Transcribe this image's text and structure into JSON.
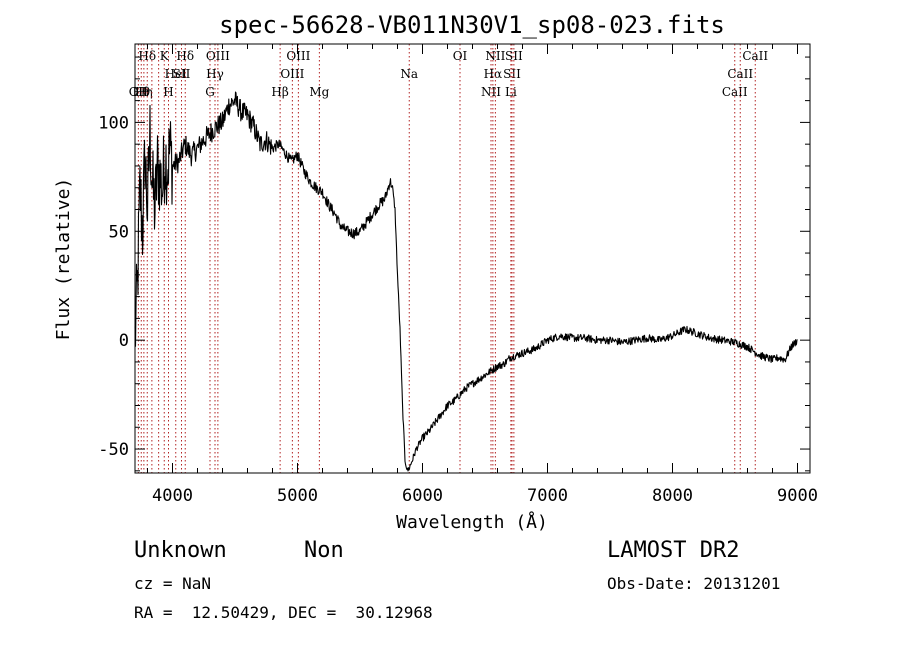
{
  "chart_data": {
    "type": "line",
    "title": "spec-56628-VB011N30V1_sp08-023.fits",
    "xlabel": "Wavelength (Å)",
    "ylabel": "Flux (relative)",
    "xlim": [
      3700,
      9100
    ],
    "ylim": [
      -61,
      136
    ],
    "xticks": [
      4000,
      5000,
      6000,
      7000,
      8000,
      9000
    ],
    "yticks": [
      -50,
      0,
      50,
      100
    ],
    "grid": false,
    "series": [
      {
        "x": [
          3700,
          3720,
          3740,
          3760,
          3780,
          3800,
          3820,
          3840,
          3860,
          3880,
          3900,
          3920,
          3940,
          3960,
          3980,
          4000,
          4050,
          4100,
          4150,
          4200,
          4250,
          4300,
          4350,
          4400,
          4450,
          4500,
          4550,
          4600,
          4650,
          4700,
          4750,
          4800,
          4850,
          4900,
          4950,
          5000,
          5050,
          5100,
          5150,
          5200,
          5250,
          5300,
          5350,
          5400,
          5450,
          5500,
          5550,
          5600,
          5650,
          5700,
          5740,
          5760,
          5780,
          5800,
          5820,
          5840,
          5860,
          5880,
          5900,
          5950,
          6000,
          6050,
          6100,
          6150,
          6200,
          6250,
          6300,
          6350,
          6400,
          6450,
          6500,
          6550,
          6600,
          6650,
          6700,
          6750,
          6800,
          6850,
          6900,
          6950,
          7000,
          7100,
          7200,
          7300,
          7400,
          7500,
          7600,
          7700,
          7800,
          7900,
          8000,
          8100,
          8200,
          8300,
          8400,
          8500,
          8550,
          8600,
          8650,
          8700,
          8750,
          8800,
          8850,
          8900,
          8950,
          9000
        ],
        "y": [
          0,
          25,
          70,
          50,
          85,
          60,
          95,
          70,
          60,
          80,
          75,
          70,
          85,
          80,
          88,
          80,
          82,
          90,
          85,
          88,
          92,
          95,
          98,
          100,
          108,
          110,
          105,
          103,
          98,
          90,
          92,
          88,
          90,
          86,
          82,
          85,
          78,
          73,
          70,
          68,
          62,
          58,
          52,
          50,
          49,
          50,
          54,
          58,
          62,
          65,
          73,
          70,
          60,
          30,
          5,
          -30,
          -55,
          -60,
          -58,
          -50,
          -45,
          -42,
          -38,
          -34,
          -30,
          -28,
          -25,
          -22,
          -20,
          -18,
          -16,
          -14,
          -12,
          -11,
          -8,
          -7,
          -6,
          -5,
          -4,
          -2,
          0,
          2,
          1,
          1,
          0,
          0,
          -1,
          0,
          1,
          0,
          2,
          5,
          3,
          1,
          0,
          -1,
          -2,
          -3,
          -5,
          -7,
          -8,
          -9,
          -8,
          -9,
          -3,
          0
        ]
      }
    ],
    "lines": [
      {
        "w": 3727,
        "label": "OII",
        "row": 3
      },
      {
        "w": 3750,
        "label": "Hθ",
        "row": 3
      },
      {
        "w": 3771,
        "label": "Hη",
        "row": 3
      },
      {
        "w": 3798,
        "label": "Hδ",
        "row": 1
      },
      {
        "w": 3835,
        "label": "",
        "row": 0
      },
      {
        "w": 3889,
        "label": "",
        "row": 0
      },
      {
        "w": 3934,
        "label": "K",
        "row": 1
      },
      {
        "w": 3968,
        "label": "H",
        "row": 3
      },
      {
        "w": 4026,
        "label": "HeI",
        "row": 2
      },
      {
        "w": 4072,
        "label": "SII",
        "row": 2
      },
      {
        "w": 4102,
        "label": "Hδ",
        "row": 1
      },
      {
        "w": 4300,
        "label": "G",
        "row": 3
      },
      {
        "w": 4340,
        "label": "Hγ",
        "row": 2
      },
      {
        "w": 4363,
        "label": "OIII",
        "row": 1
      },
      {
        "w": 4861,
        "label": "Hβ",
        "row": 3
      },
      {
        "w": 4959,
        "label": "OIII",
        "row": 2
      },
      {
        "w": 5007,
        "label": "OIII",
        "row": 1
      },
      {
        "w": 5175,
        "label": "Mg",
        "row": 3
      },
      {
        "w": 5894,
        "label": "Na",
        "row": 2
      },
      {
        "w": 6300,
        "label": "OI",
        "row": 1
      },
      {
        "w": 6548,
        "label": "NII",
        "row": 3
      },
      {
        "w": 6563,
        "label": "Hα",
        "row": 2
      },
      {
        "w": 6583,
        "label": "NII",
        "row": 1
      },
      {
        "w": 6707,
        "label": "Li",
        "row": 3
      },
      {
        "w": 6716,
        "label": "SII",
        "row": 2
      },
      {
        "w": 6731,
        "label": "SII",
        "row": 1
      },
      {
        "w": 8498,
        "label": "CaII",
        "row": 3
      },
      {
        "w": 8542,
        "label": "CaII",
        "row": 2
      },
      {
        "w": 8662,
        "label": "CaII",
        "row": 1
      }
    ],
    "colors": {
      "spectrum": "#000000",
      "lines": "#b22222",
      "axes": "#000000"
    }
  },
  "footer": {
    "class_label": "Unknown",
    "subclass_label": "Non",
    "cz": "cz = NaN",
    "radec": "RA =  12.50429, DEC =  30.12968",
    "survey": "LAMOST DR2",
    "obs_date": "Obs-Date: 20131201"
  }
}
